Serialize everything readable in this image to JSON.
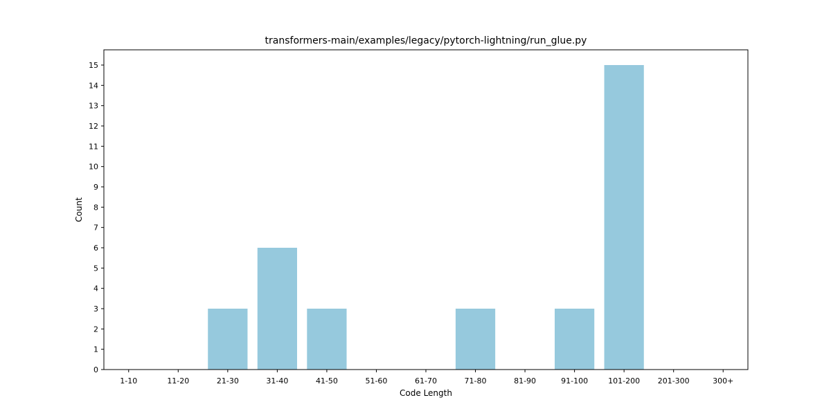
{
  "chart_data": {
    "type": "bar",
    "title": "transformers-main/examples/legacy/pytorch-lightning/run_glue.py",
    "xlabel": "Code Length",
    "ylabel": "Count",
    "categories": [
      "1-10",
      "11-20",
      "21-30",
      "31-40",
      "41-50",
      "51-60",
      "61-70",
      "71-80",
      "81-90",
      "91-100",
      "101-200",
      "201-300",
      "300+"
    ],
    "values": [
      0,
      0,
      3,
      6,
      3,
      0,
      0,
      3,
      0,
      3,
      15,
      0,
      0
    ],
    "ylim": [
      0,
      15.75
    ],
    "yticks": [
      0,
      1,
      2,
      3,
      4,
      5,
      6,
      7,
      8,
      9,
      10,
      11,
      12,
      13,
      14,
      15
    ],
    "grid": false,
    "bar_color": "#96c9dd"
  }
}
